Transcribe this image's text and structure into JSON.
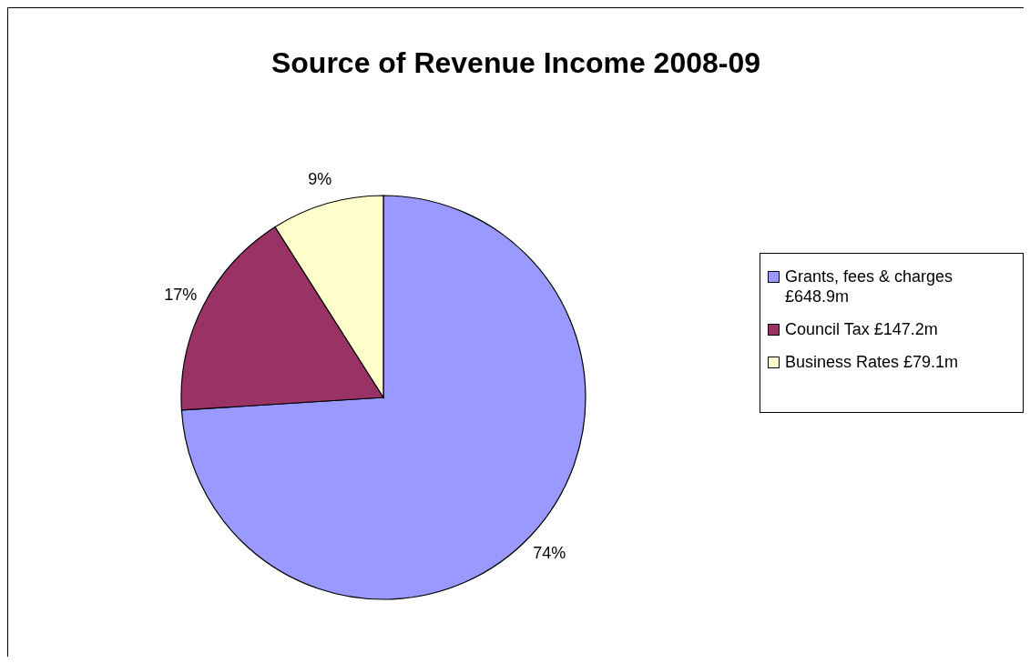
{
  "chart_data": {
    "type": "pie",
    "title": "Source of Revenue Income 2008-09",
    "categories": [
      "Grants, fees & charges £648.9m",
      "Council Tax £147.2m",
      "Business Rates £79.1m"
    ],
    "values": [
      74,
      17,
      9
    ],
    "colors": [
      "#9999ff",
      "#993366",
      "#ffffcc"
    ],
    "value_labels": [
      "74%",
      "17%",
      "9%"
    ],
    "legend": "right"
  }
}
